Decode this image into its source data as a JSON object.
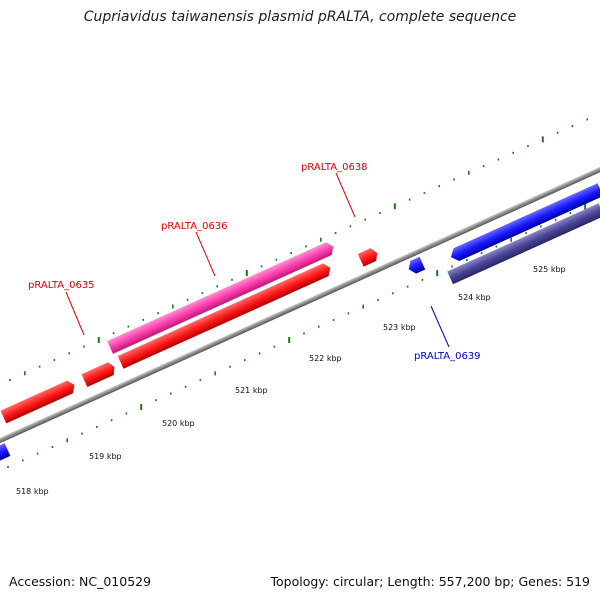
{
  "title": "Cupriavidus taiwanensis plasmid pRALTA, complete sequence",
  "footer": {
    "accession": "Accession: NC_010529",
    "summary": "Topology: circular; Length: 557,200 bp; Genes: 519"
  },
  "kbp_labels": [
    "518 kbp",
    "519 kbp",
    "520 kbp",
    "521 kbp",
    "522 kbp",
    "523 kbp",
    "524 kbp",
    "525 kbp"
  ],
  "gene_labels": [
    {
      "id": "g635",
      "text": "pRALTA_0635",
      "color": "#e00000"
    },
    {
      "id": "g636",
      "text": "pRALTA_0636",
      "color": "#e00000"
    },
    {
      "id": "g638",
      "text": "pRALTA_0638",
      "color": "#e00000"
    },
    {
      "id": "g639",
      "text": "pRALTA_0639",
      "color": "#0000cc"
    }
  ],
  "colors": {
    "forward_gene": "#ff1a1a",
    "highlight_gene": "#ff3fae",
    "reverse_gene": "#1a1aff",
    "reverse_gene_dark": "#4a4596",
    "backbone": "#888888",
    "tick": "#1a7a1a"
  }
}
